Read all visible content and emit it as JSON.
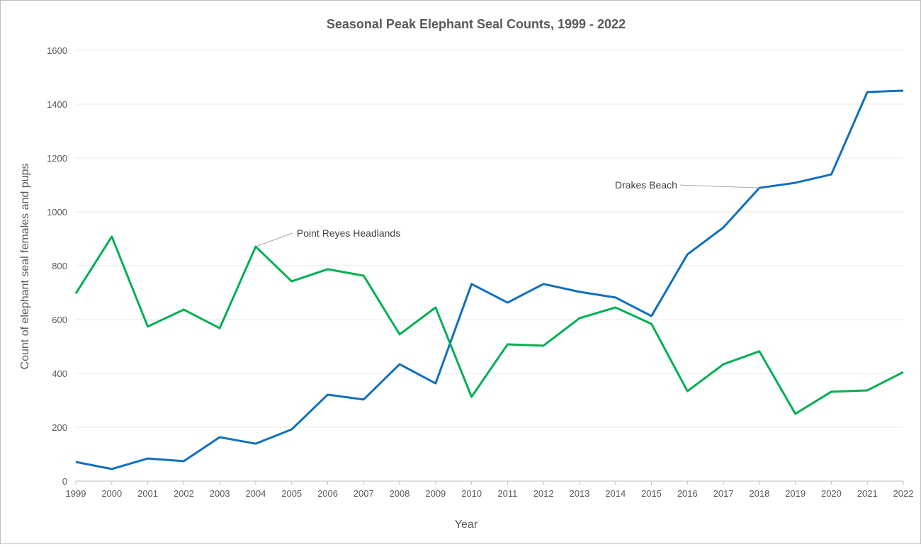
{
  "chart_data": {
    "type": "line",
    "title": "Seasonal Peak Elephant Seal Counts, 1999 - 2022",
    "xlabel": "Year",
    "ylabel": "Count of elephant seal females and pups",
    "ylim": [
      0,
      1600
    ],
    "yticks": [
      0,
      200,
      400,
      600,
      800,
      1000,
      1200,
      1400,
      1600
    ],
    "grid": true,
    "legend": "none (inline labels)",
    "x": [
      1999,
      2000,
      2001,
      2002,
      2003,
      2004,
      2005,
      2006,
      2007,
      2008,
      2009,
      2010,
      2011,
      2012,
      2013,
      2014,
      2015,
      2016,
      2017,
      2018,
      2019,
      2020,
      2021,
      2022
    ],
    "series": [
      {
        "name": "Drakes Beach",
        "color": "#0f6fc0",
        "label_at": 2018,
        "values": [
          71,
          45,
          84,
          74,
          163,
          139,
          192,
          321,
          303,
          434,
          363,
          732,
          663,
          732,
          703,
          682,
          613,
          842,
          942,
          1089,
          1108,
          1139,
          1445,
          1450
        ]
      },
      {
        "name": "Point Reyes Headlands",
        "color": "#00b050",
        "label_at": 2004,
        "values": [
          697,
          908,
          574,
          637,
          568,
          871,
          742,
          787,
          763,
          545,
          645,
          313,
          508,
          503,
          605,
          645,
          584,
          334,
          434,
          482,
          250,
          332,
          337,
          405
        ]
      }
    ]
  }
}
